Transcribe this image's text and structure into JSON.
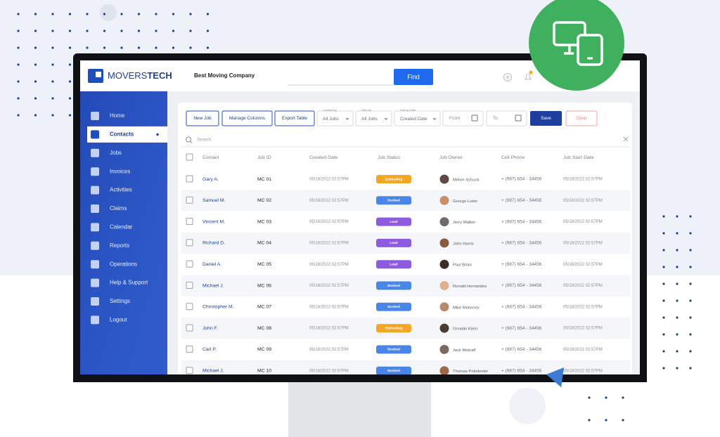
{
  "header": {
    "logo_light": "MOVERS",
    "logo_bold": "TECH",
    "company": "Best Moving Company",
    "find_button": "Find"
  },
  "sidebar": {
    "items": [
      "Home",
      "Contacts",
      "Jobs",
      "Invoices",
      "Activities",
      "Claims",
      "Calendar",
      "Reports",
      "Operations",
      "Help & Support",
      "Settings",
      "Logout"
    ]
  },
  "toolbar": {
    "buttons": [
      "New Job",
      "Manage Columns",
      "Export Table"
    ],
    "filters": [
      {
        "label": "Created by",
        "value": "All Jobs"
      },
      {
        "label": "Filter by",
        "value": "All Jobs"
      },
      {
        "label": "Sort by Date",
        "value": "Created Date"
      }
    ],
    "from": "From",
    "to": "To",
    "save": "Save",
    "clear": "Clear"
  },
  "table": {
    "search_placeholder": "Search",
    "columns": [
      "Contact",
      "Job ID",
      "Created Date",
      "Job Status",
      "Job Owner",
      "Cell Phone",
      "Job Start Date"
    ],
    "status_colors": {
      "Estimating": "#f5a623",
      "Booked": "#4a86e8",
      "Lead": "#8e5be0"
    },
    "rows": [
      [
        "Gary A.",
        "MC 01",
        "05/18/2022  02:57PM",
        "Estimating",
        "Melvin Schuck",
        "+ (987) 654 - 34456",
        "05/18/2022  02:57PM"
      ],
      [
        "Samuel M.",
        "MC 02",
        "05/18/2022  02:57PM",
        "Booked",
        "George Lister",
        "+ (987) 654 - 34456",
        "05/18/2022  02:57PM"
      ],
      [
        "Vincent M.",
        "MC 03",
        "05/18/2022  02:57PM",
        "Lead",
        "Jerry Walker",
        "+ (987) 654 - 34456",
        "05/18/2022  02:57PM"
      ],
      [
        "Richard D.",
        "MC 04",
        "05/18/2022  02:57PM",
        "Lead",
        "John Harris",
        "+ (987) 654 - 34456",
        "05/18/2022  02:57PM"
      ],
      [
        "Daniel A.",
        "MC 05",
        "05/18/2022  02:57PM",
        "Lead",
        "Paul Brian",
        "+ (987) 654 - 34456",
        "05/18/2022  02:57PM"
      ],
      [
        "Michael J.",
        "MC 06",
        "05/18/2022  02:57PM",
        "Booked",
        "Ronald Hernandez",
        "+ (987) 654 - 34456",
        "05/18/2022  02:57PM"
      ],
      [
        "Christopher M.",
        "MC 07",
        "05/18/2022  02:57PM",
        "Booked",
        "Mike Mahoney",
        "+ (987) 654 - 34456",
        "05/18/2022  02:57PM"
      ],
      [
        "John F.",
        "MC 08",
        "05/18/2022  02:57PM",
        "Estimating",
        "Orvaldo Klein",
        "+ (987) 654 - 34456",
        "05/18/2022  02:57PM"
      ],
      [
        "Carl P.",
        "MC 09",
        "05/18/2022  02:57PM",
        "Booked",
        "Jack Metcalf",
        "+ (987) 654 - 34456",
        "05/18/2022  02:57PM"
      ],
      [
        "Michael J.",
        "MC 10",
        "05/18/2022  02:57PM",
        "Booked",
        "Thomas Poindexter",
        "+ (987) 654 - 34456",
        "05/18/2022  02:57PM"
      ]
    ]
  }
}
